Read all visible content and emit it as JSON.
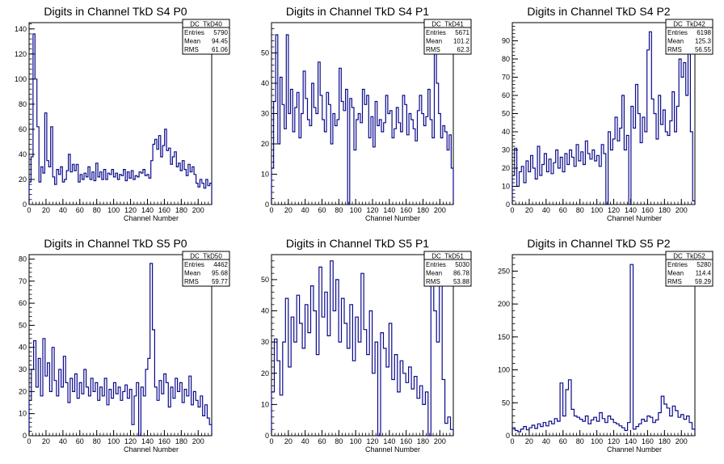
{
  "chart_data": [
    {
      "type": "histogram",
      "title": "Digits in Channel TkD S4 P0",
      "xlabel": "Channel Number",
      "xlim": [
        0,
        216
      ],
      "ylim": [
        0,
        145
      ],
      "xticks": [
        0,
        20,
        40,
        60,
        80,
        100,
        120,
        140,
        160,
        180,
        200
      ],
      "yticks": [
        0,
        20,
        40,
        60,
        80,
        100,
        120,
        140
      ],
      "stats": {
        "name": "DC_TkD40",
        "entries": "5790",
        "mean": "94.45",
        "rms": "61.06"
      },
      "series": [
        {
          "values": [
            18,
            38,
            136,
            100,
            62,
            18,
            30,
            25,
            73,
            35,
            30,
            62,
            22,
            16,
            28,
            24,
            30,
            18,
            20,
            27,
            40,
            26,
            32,
            27,
            32,
            18,
            24,
            20,
            25,
            22,
            30,
            20,
            26,
            19,
            33,
            22,
            26,
            20,
            28,
            20,
            25,
            24,
            28,
            22,
            25,
            20,
            24,
            23,
            28,
            19,
            26,
            21,
            27,
            20,
            23,
            22,
            26,
            25,
            28,
            23,
            24,
            21,
            35,
            48,
            52,
            44,
            55,
            38,
            47,
            60,
            43,
            45,
            32,
            38,
            42,
            30,
            33,
            27,
            35,
            28,
            23,
            32,
            26,
            30,
            24,
            17,
            14,
            20,
            17,
            13,
            20,
            15,
            17
          ]
        }
      ]
    },
    {
      "type": "histogram",
      "title": "Digits in Channel TkD S4 P1",
      "xlabel": "Channel Number",
      "xlim": [
        0,
        216
      ],
      "ylim": [
        0,
        60
      ],
      "xticks": [
        0,
        20,
        40,
        60,
        80,
        100,
        120,
        140,
        160,
        180,
        200
      ],
      "yticks": [
        0,
        10,
        20,
        30,
        40,
        50
      ],
      "stats": {
        "name": "DC_TkD41",
        "entries": "5671",
        "mean": "101.2",
        "rms": "62.3"
      },
      "series": [
        {
          "values": [
            12,
            34,
            56,
            20,
            42,
            33,
            25,
            56,
            30,
            38,
            24,
            32,
            37,
            22,
            30,
            44,
            35,
            28,
            26,
            40,
            32,
            30,
            47,
            36,
            28,
            24,
            37,
            33,
            20,
            30,
            26,
            28,
            45,
            34,
            31,
            38,
            0,
            35,
            32,
            18,
            28,
            30,
            27,
            38,
            33,
            36,
            22,
            29,
            19,
            34,
            26,
            28,
            24,
            27,
            36,
            30,
            31,
            22,
            25,
            32,
            27,
            24,
            36,
            33,
            23,
            30,
            28,
            25,
            21,
            31,
            36,
            30,
            26,
            29,
            38,
            28,
            22,
            53,
            40,
            30,
            22,
            26,
            24,
            18,
            23,
            12
          ]
        }
      ]
    },
    {
      "type": "histogram",
      "title": "Digits in Channel TkD S4 P2",
      "xlabel": "Channel Number",
      "xlim": [
        0,
        216
      ],
      "ylim": [
        0,
        100
      ],
      "xticks": [
        0,
        20,
        40,
        60,
        80,
        100,
        120,
        140,
        160,
        180,
        200
      ],
      "yticks": [
        0,
        10,
        20,
        30,
        40,
        50,
        60,
        70,
        80,
        90
      ],
      "stats": {
        "name": "DC_TkD42",
        "entries": "6198",
        "mean": "125.3",
        "rms": "56.55"
      },
      "series": [
        {
          "values": [
            16,
            31,
            10,
            18,
            21,
            12,
            24,
            18,
            27,
            20,
            14,
            32,
            16,
            22,
            28,
            18,
            25,
            17,
            23,
            30,
            20,
            26,
            18,
            28,
            22,
            30,
            26,
            21,
            33,
            24,
            29,
            22,
            35,
            28,
            25,
            30,
            24,
            27,
            21,
            33,
            28,
            0,
            40,
            30,
            36,
            48,
            35,
            42,
            60,
            30,
            38,
            0,
            54,
            42,
            66,
            50,
            34,
            48,
            40,
            85,
            95,
            58,
            50,
            36,
            60,
            44,
            52,
            40,
            38,
            46,
            62,
            40,
            54,
            80,
            70,
            78,
            60,
            85,
            40,
            2
          ]
        }
      ]
    },
    {
      "type": "histogram",
      "title": "Digits in Channel TkD S5 P0",
      "xlabel": "Channel Number",
      "xlim": [
        0,
        216
      ],
      "ylim": [
        0,
        82
      ],
      "xticks": [
        0,
        20,
        40,
        60,
        80,
        100,
        120,
        140,
        160,
        180,
        200
      ],
      "yticks": [
        0,
        10,
        20,
        30,
        40,
        50,
        60,
        70,
        80
      ],
      "stats": {
        "name": "DC_TkD50",
        "entries": "4462",
        "mean": "95.68",
        "rms": "59.77"
      },
      "series": [
        {
          "values": [
            16,
            30,
            43,
            22,
            35,
            18,
            44,
            27,
            33,
            20,
            40,
            25,
            18,
            30,
            22,
            36,
            24,
            15,
            26,
            20,
            28,
            17,
            24,
            19,
            30,
            22,
            18,
            26,
            20,
            24,
            16,
            22,
            18,
            26,
            14,
            21,
            17,
            24,
            19,
            22,
            16,
            20,
            23,
            17,
            21,
            5,
            18,
            24,
            0,
            22,
            18,
            30,
            35,
            78,
            48,
            22,
            16,
            25,
            19,
            28,
            24,
            13,
            22,
            17,
            26,
            20,
            24,
            15,
            21,
            18,
            27,
            14,
            20,
            16,
            13,
            18,
            9,
            14,
            8,
            5
          ]
        }
      ]
    },
    {
      "type": "histogram",
      "title": "Digits in Channel TkD S5 P1",
      "xlabel": "Channel Number",
      "xlim": [
        0,
        216
      ],
      "ylim": [
        0,
        58
      ],
      "xticks": [
        0,
        20,
        40,
        60,
        80,
        100,
        120,
        140,
        160,
        180,
        200
      ],
      "yticks": [
        0,
        10,
        20,
        30,
        40,
        50
      ],
      "stats": {
        "name": "DC_TkD51",
        "entries": "5030",
        "mean": "86.78",
        "rms": "53.88"
      },
      "series": [
        {
          "values": [
            14,
            31,
            24,
            13,
            30,
            44,
            22,
            38,
            30,
            45,
            36,
            28,
            42,
            33,
            48,
            40,
            26,
            54,
            38,
            46,
            32,
            56,
            40,
            50,
            30,
            44,
            36,
            28,
            42,
            24,
            38,
            30,
            52,
            34,
            26,
            40,
            20,
            30,
            0,
            33,
            28,
            22,
            36,
            18,
            26,
            14,
            24,
            20,
            17,
            22,
            15,
            19,
            12,
            16,
            10,
            14,
            0,
            52,
            40,
            30,
            48,
            18,
            4,
            6,
            2
          ]
        }
      ]
    },
    {
      "type": "histogram",
      "title": "Digits in Channel TkD S5 P2",
      "xlabel": "Channel Number",
      "xlim": [
        0,
        216
      ],
      "ylim": [
        0,
        275
      ],
      "xticks": [
        0,
        20,
        40,
        60,
        80,
        100,
        120,
        140,
        160,
        180,
        200
      ],
      "yticks": [
        0,
        50,
        100,
        150,
        200,
        250
      ],
      "stats": {
        "name": "DC_TkD52",
        "entries": "5280",
        "mean": "114.4",
        "rms": "59.29"
      },
      "series": [
        {
          "values": [
            12,
            8,
            6,
            10,
            14,
            9,
            12,
            16,
            11,
            18,
            14,
            20,
            15,
            22,
            18,
            26,
            22,
            80,
            30,
            70,
            85,
            40,
            30,
            28,
            25,
            22,
            30,
            18,
            24,
            28,
            22,
            35,
            26,
            20,
            30,
            25,
            20,
            18,
            15,
            12,
            8,
            20,
            260,
            10,
            14,
            18,
            25,
            22,
            30,
            28,
            20,
            24,
            35,
            60,
            48,
            42,
            30,
            45,
            38,
            28,
            32,
            25,
            30,
            20,
            10
          ]
        }
      ]
    }
  ],
  "labels": {
    "entries": "Entries",
    "mean": "Mean",
    "rms": "RMS"
  }
}
